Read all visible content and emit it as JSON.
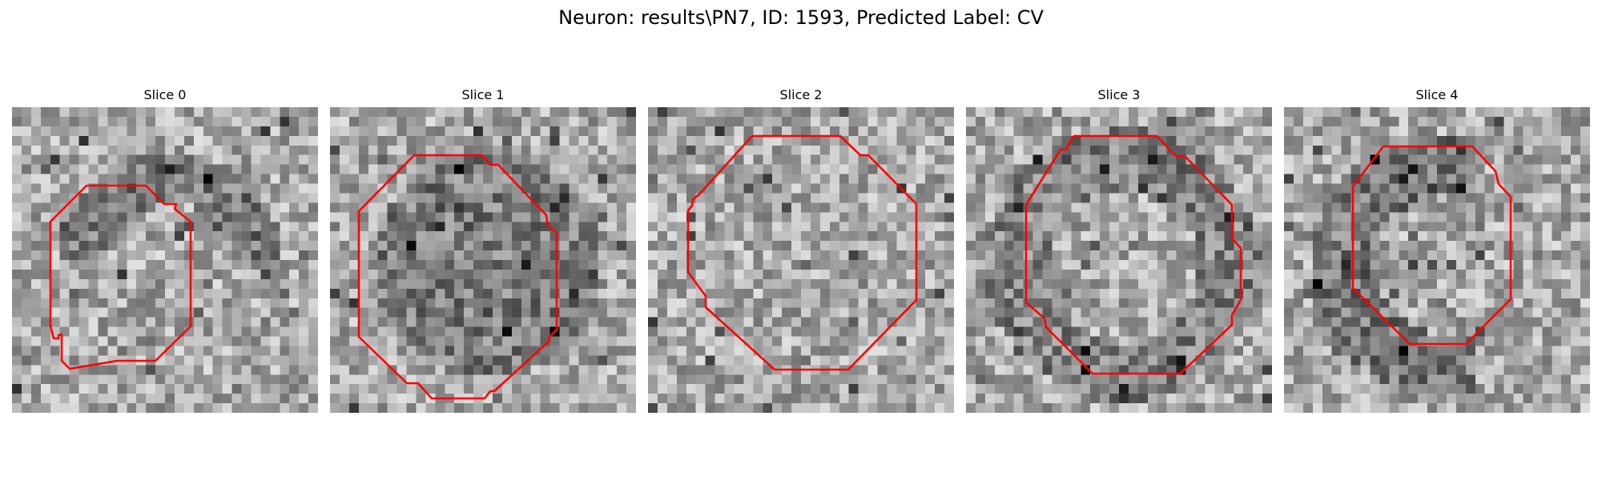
{
  "figure": {
    "title": "Neuron: results\\PN7, ID: 1593, Predicted Label: CV",
    "contour_color": "#ff0000",
    "image_colormap": "grayscale",
    "grid_size": 32
  },
  "slices": [
    {
      "title": "Slice 0",
      "seed": 11,
      "dark_region": "ring-top"
    },
    {
      "title": "Slice 1",
      "seed": 23,
      "dark_region": "filled"
    },
    {
      "title": "Slice 2",
      "seed": 37,
      "dark_region": "none"
    },
    {
      "title": "Slice 3",
      "seed": 41,
      "dark_region": "ring"
    },
    {
      "title": "Slice 4",
      "seed": 59,
      "dark_region": "ring-lower-left"
    }
  ]
}
